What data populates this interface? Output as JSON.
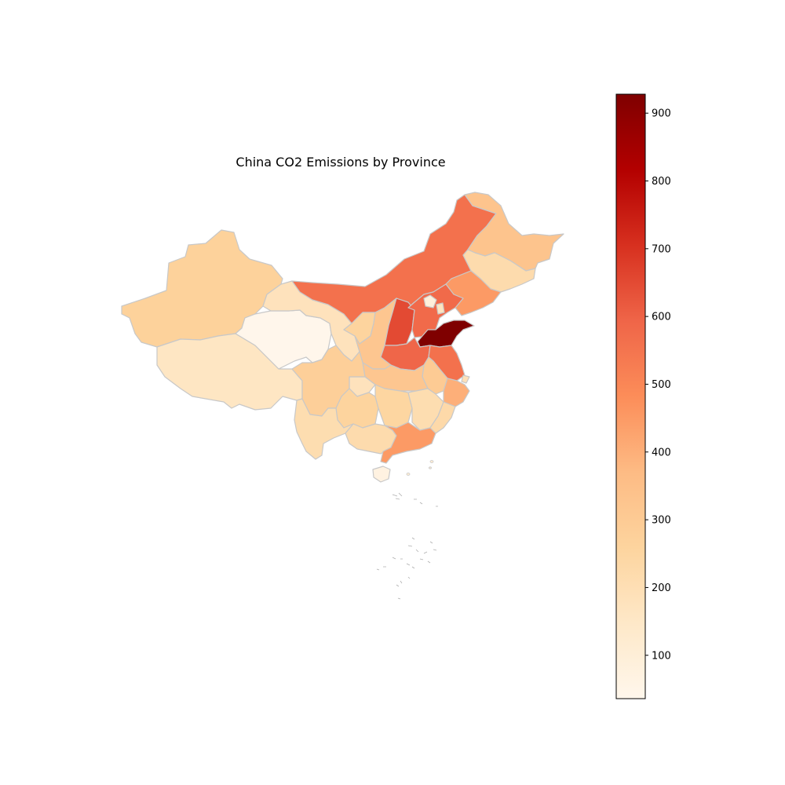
{
  "title": "China CO2 Emissions by Province",
  "colormap": {
    "name": "OrRd",
    "min": 36,
    "max": 928,
    "stops": [
      "#fff7ec",
      "#fee8c8",
      "#fdd49e",
      "#fdbb84",
      "#fc8d59",
      "#ef6548",
      "#d7301f",
      "#b30000",
      "#7f0000"
    ],
    "ticks": [
      "100",
      "200",
      "300",
      "400",
      "500",
      "600",
      "700",
      "800",
      "900"
    ]
  },
  "border_color": "#c8c8c8"
}
